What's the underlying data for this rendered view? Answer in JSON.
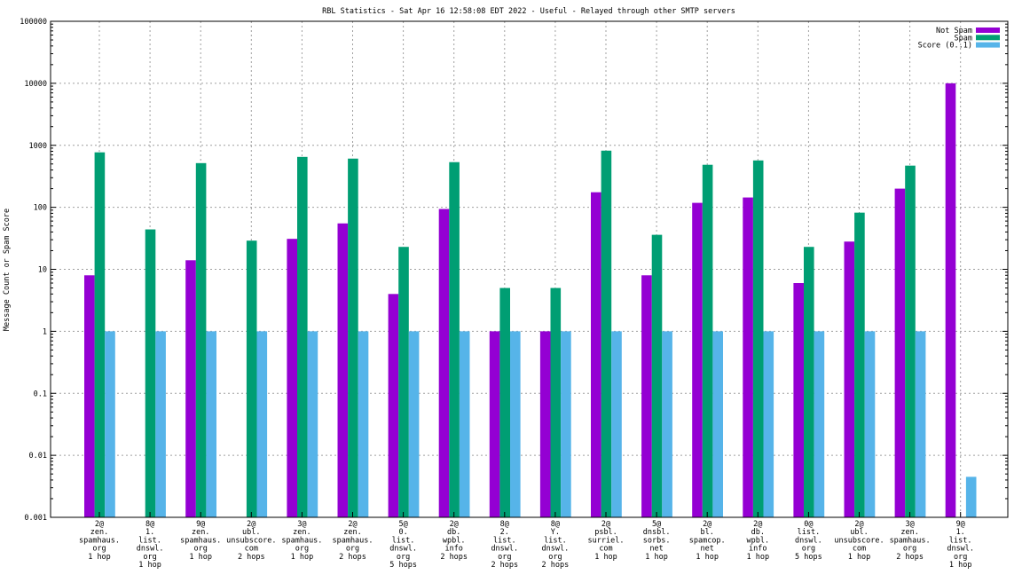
{
  "chart_data": {
    "type": "bar",
    "title": "RBL Statistics - Sat Apr 16 12:58:08 EDT 2022 - Useful - Relayed through other SMTP servers",
    "xlabel": "",
    "ylabel": "Message Count or Spam Score",
    "yscale": "log",
    "ylim": [
      0.001,
      100000
    ],
    "yticks": [
      "0.001",
      "0.01",
      "0.1",
      "1",
      "10",
      "100",
      "1000",
      "10000",
      "100000"
    ],
    "grid": true,
    "legend_position": "top-right",
    "categories": [
      [
        "2@",
        "zen.",
        "spamhaus.",
        "org",
        "1 hop"
      ],
      [
        "8@",
        "1.",
        "list.",
        "dnswl.",
        "org",
        "1 hop"
      ],
      [
        "9@",
        "zen.",
        "spamhaus.",
        "org",
        "1 hop"
      ],
      [
        "2@",
        "ubl.",
        "unsubscore.",
        "com",
        "2 hops"
      ],
      [
        "3@",
        "zen.",
        "spamhaus.",
        "org",
        "1 hop"
      ],
      [
        "2@",
        "zen.",
        "spamhaus.",
        "org",
        "2 hops"
      ],
      [
        "5@",
        "0.",
        "list.",
        "dnswl.",
        "org",
        "5 hops"
      ],
      [
        "2@",
        "db.",
        "wpbl.",
        "info",
        "2 hops"
      ],
      [
        "8@",
        "2.",
        "list.",
        "dnswl.",
        "org",
        "2 hops"
      ],
      [
        "8@",
        "Y.",
        "list.",
        "dnswl.",
        "org",
        "2 hops"
      ],
      [
        "2@",
        "psbl.",
        "surriel.",
        "com",
        "1 hop"
      ],
      [
        "5@",
        "dnsbl.",
        "sorbs.",
        "net",
        "1 hop"
      ],
      [
        "2@",
        "bl.",
        "spamcop.",
        "net",
        "1 hop"
      ],
      [
        "2@",
        "db.",
        "wpbl.",
        "info",
        "1 hop"
      ],
      [
        "0@",
        "list.",
        "dnswl.",
        "org",
        "5 hops"
      ],
      [
        "2@",
        "ubl.",
        "unsubscore.",
        "com",
        "1 hop"
      ],
      [
        "3@",
        "zen.",
        "spamhaus.",
        "org",
        "2 hops"
      ],
      [
        "9@",
        "1.",
        "list.",
        "dnswl.",
        "org",
        "1 hop"
      ]
    ],
    "series": [
      {
        "name": "Not Spam",
        "color": "#9400d3",
        "values": [
          8,
          null,
          14,
          null,
          31,
          55,
          4,
          94,
          1,
          1,
          175,
          8,
          118,
          144,
          6,
          28,
          200,
          10000
        ]
      },
      {
        "name": "Spam",
        "color": "#009e73",
        "values": [
          770,
          44,
          516,
          29,
          650,
          610,
          23,
          535,
          5,
          5,
          820,
          36,
          485,
          570,
          23,
          82,
          470,
          null
        ]
      },
      {
        "name": "Score (0..1)",
        "color": "#56b4e9",
        "values": [
          1,
          1,
          1,
          1,
          1,
          1,
          1,
          1,
          1,
          1,
          1,
          1,
          1,
          1,
          1,
          1,
          1,
          0.0045
        ]
      }
    ]
  }
}
